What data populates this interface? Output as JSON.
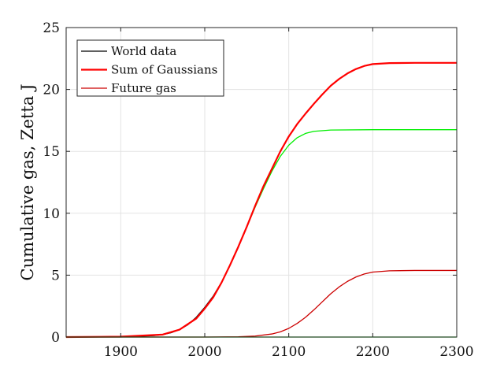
{
  "chart_data": {
    "type": "line",
    "title": "",
    "xlabel": "",
    "ylabel": "Cumulative gas, Zetta J",
    "xlim": [
      1835,
      2300
    ],
    "ylim": [
      0,
      25
    ],
    "xticks": [
      1900,
      2000,
      2100,
      2200,
      2300
    ],
    "yticks": [
      0,
      5,
      10,
      15,
      20,
      25
    ],
    "grid": true,
    "legend_position": "top-left",
    "series": [
      {
        "name": "World data",
        "color": "#000000",
        "x": [
          1835,
          1900,
          1920,
          1940,
          1950,
          1960,
          1970,
          1980,
          1990,
          2000,
          2010,
          2018
        ],
        "y": [
          0,
          0.02,
          0.05,
          0.12,
          0.2,
          0.35,
          0.6,
          1.0,
          1.6,
          2.4,
          3.3,
          4.2
        ]
      },
      {
        "name": "",
        "color": "#00ee00",
        "x": [
          1835,
          1900,
          1950,
          1970,
          1990,
          2000,
          2010,
          2020,
          2030,
          2040,
          2050,
          2060,
          2070,
          2080,
          2090,
          2100,
          2110,
          2120,
          2130,
          2150,
          2200,
          2300
        ],
        "y": [
          0,
          0.03,
          0.2,
          0.6,
          1.5,
          2.3,
          3.2,
          4.4,
          5.8,
          7.3,
          8.9,
          10.5,
          12.0,
          13.4,
          14.6,
          15.5,
          16.1,
          16.45,
          16.62,
          16.72,
          16.75,
          16.75
        ]
      },
      {
        "name": "Future gas",
        "color": "#cc0000",
        "x": [
          1835,
          2000,
          2040,
          2060,
          2080,
          2090,
          2100,
          2110,
          2120,
          2130,
          2140,
          2150,
          2160,
          2170,
          2180,
          2190,
          2200,
          2220,
          2250,
          2300
        ],
        "y": [
          0,
          0,
          0.02,
          0.08,
          0.25,
          0.42,
          0.7,
          1.1,
          1.6,
          2.2,
          2.85,
          3.5,
          4.05,
          4.5,
          4.85,
          5.1,
          5.25,
          5.35,
          5.38,
          5.38
        ]
      },
      {
        "name": "Sum of Gaussians",
        "color": "#ff0000",
        "x": [
          1835,
          1900,
          1950,
          1970,
          1990,
          2000,
          2010,
          2020,
          2030,
          2040,
          2050,
          2060,
          2070,
          2080,
          2090,
          2100,
          2110,
          2120,
          2130,
          2140,
          2150,
          2160,
          2170,
          2180,
          2190,
          2200,
          2220,
          2250,
          2300
        ],
        "y": [
          0,
          0.03,
          0.2,
          0.6,
          1.5,
          2.3,
          3.2,
          4.4,
          5.8,
          7.3,
          8.9,
          10.6,
          12.2,
          13.6,
          15.0,
          16.2,
          17.2,
          18.05,
          18.85,
          19.6,
          20.3,
          20.85,
          21.3,
          21.65,
          21.9,
          22.05,
          22.13,
          22.15,
          22.15
        ]
      },
      {
        "name": "",
        "color": "#00cc00",
        "x": [
          1835,
          2300
        ],
        "y": [
          0,
          0
        ]
      }
    ]
  }
}
